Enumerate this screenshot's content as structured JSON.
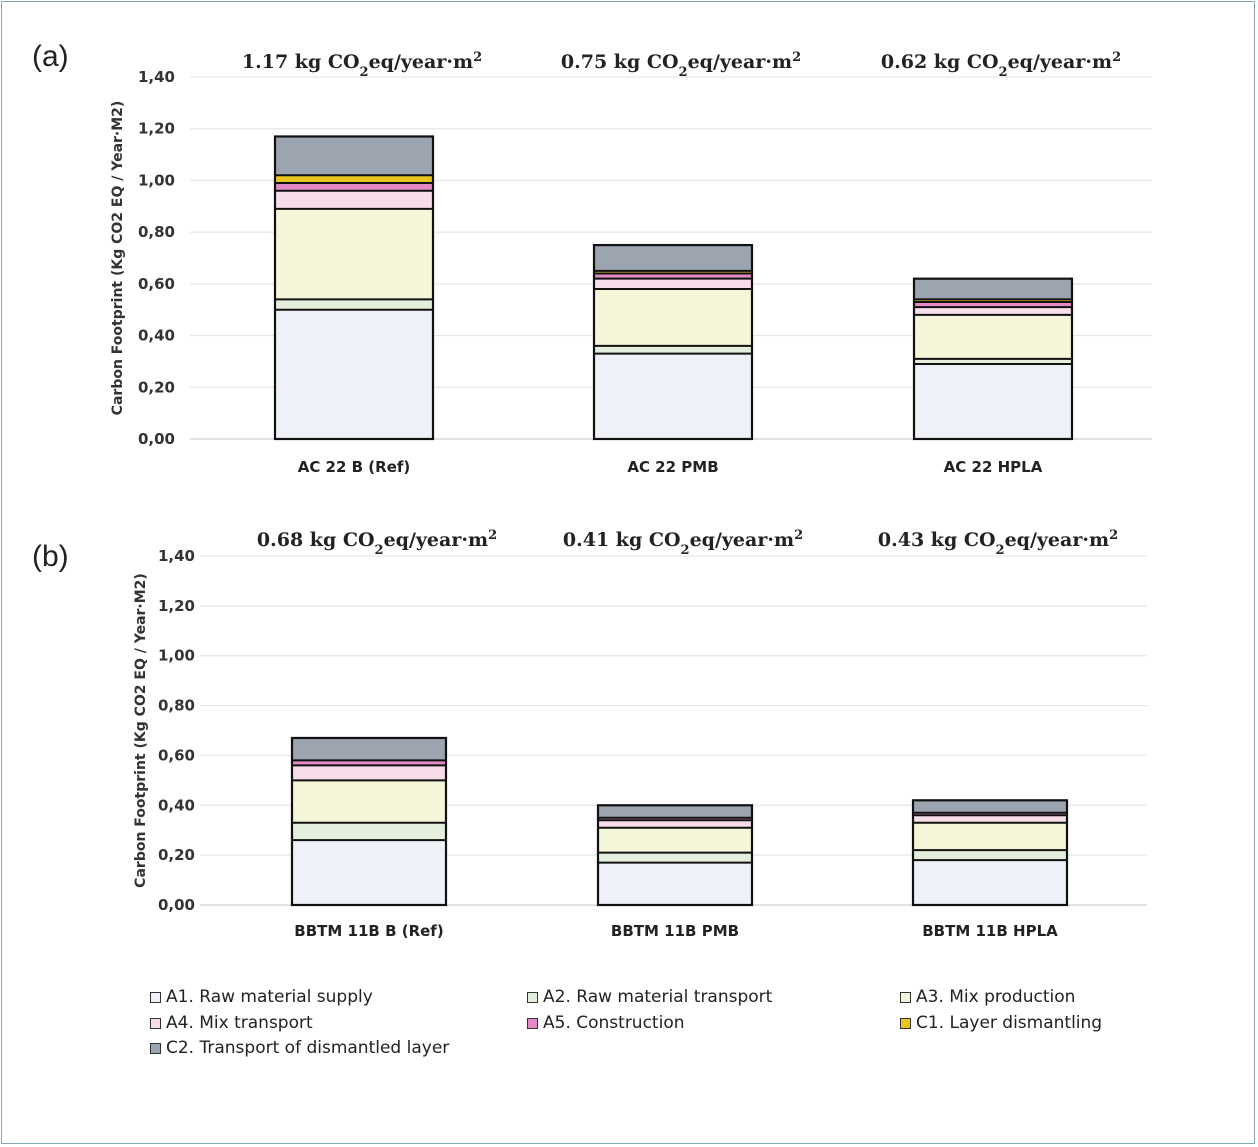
{
  "chart_data": [
    {
      "panel_label": "(a)",
      "type": "bar",
      "stacked": true,
      "ylabel": "Carbon Footprint (Kg CO2 EQ / Year·M2)",
      "ylim": [
        0,
        1.4
      ],
      "yticks": [
        "0,00",
        "0,20",
        "0,40",
        "0,60",
        "0,80",
        "1,00",
        "1,20",
        "1,40"
      ],
      "grid": true,
      "categories": [
        "AC 22 B (Ref)",
        "AC 22 PMB",
        "AC 22 HPLA"
      ],
      "totals": [
        "1.17 kg CO₂eq/year·m²",
        "0.75 kg CO₂eq/year·m²",
        "0.62 kg CO₂eq/year·m²"
      ],
      "series": [
        {
          "name": "A1. Raw material supply",
          "values": [
            0.5,
            0.33,
            0.29
          ]
        },
        {
          "name": "A2. Raw material transport",
          "values": [
            0.04,
            0.03,
            0.02
          ]
        },
        {
          "name": "A3. Mix production",
          "values": [
            0.35,
            0.22,
            0.17
          ]
        },
        {
          "name": "A4. Mix transport",
          "values": [
            0.07,
            0.04,
            0.03
          ]
        },
        {
          "name": "A5. Construction",
          "values": [
            0.03,
            0.02,
            0.02
          ]
        },
        {
          "name": "C1. Layer dismantling",
          "values": [
            0.03,
            0.01,
            0.01
          ]
        },
        {
          "name": "C2. Transport of dismantled layer",
          "values": [
            0.15,
            0.1,
            0.08
          ]
        }
      ]
    },
    {
      "panel_label": "(b)",
      "type": "bar",
      "stacked": true,
      "ylabel": "Carbon Footprint (Kg CO2 EQ / Year·M2)",
      "ylim": [
        0,
        1.4
      ],
      "yticks": [
        "0,00",
        "0,20",
        "0,40",
        "0,60",
        "0,80",
        "1,00",
        "1,20",
        "1,40"
      ],
      "grid": true,
      "categories": [
        "BBTM 11B B  (Ref)",
        "BBTM 11B PMB",
        "BBTM 11B HPLA"
      ],
      "totals": [
        "0.68 kg CO₂eq/year·m²",
        "0.41 kg CO₂eq/year·m²",
        "0.43 kg CO₂eq/year·m²"
      ],
      "series": [
        {
          "name": "A1. Raw material supply",
          "values": [
            0.26,
            0.17,
            0.18
          ]
        },
        {
          "name": "A2. Raw material transport",
          "values": [
            0.07,
            0.04,
            0.04
          ]
        },
        {
          "name": "A3. Mix production",
          "values": [
            0.17,
            0.1,
            0.11
          ]
        },
        {
          "name": "A4. Mix transport",
          "values": [
            0.06,
            0.03,
            0.03
          ]
        },
        {
          "name": "A5. Construction",
          "values": [
            0.02,
            0.01,
            0.01
          ]
        },
        {
          "name": "C1. Layer dismantling",
          "values": [
            0.0,
            0.0,
            0.0
          ]
        },
        {
          "name": "C2. Transport of dismantled layer",
          "values": [
            0.09,
            0.05,
            0.05
          ]
        }
      ]
    }
  ],
  "legend": [
    {
      "label": "A1. Raw material supply",
      "color": "#eef1f8"
    },
    {
      "label": "A2. Raw material transport",
      "color": "#e3efdc"
    },
    {
      "label": "A3. Mix production",
      "color": "#f5f5d9"
    },
    {
      "label": "A4. Mix transport",
      "color": "#f7dcea"
    },
    {
      "label": "A5. Construction",
      "color": "#e389c6"
    },
    {
      "label": "C1. Layer dismantling",
      "color": "#e8c51c"
    },
    {
      "label": "C2. Transport of dismantled layer",
      "color": "#9ba4af"
    }
  ]
}
